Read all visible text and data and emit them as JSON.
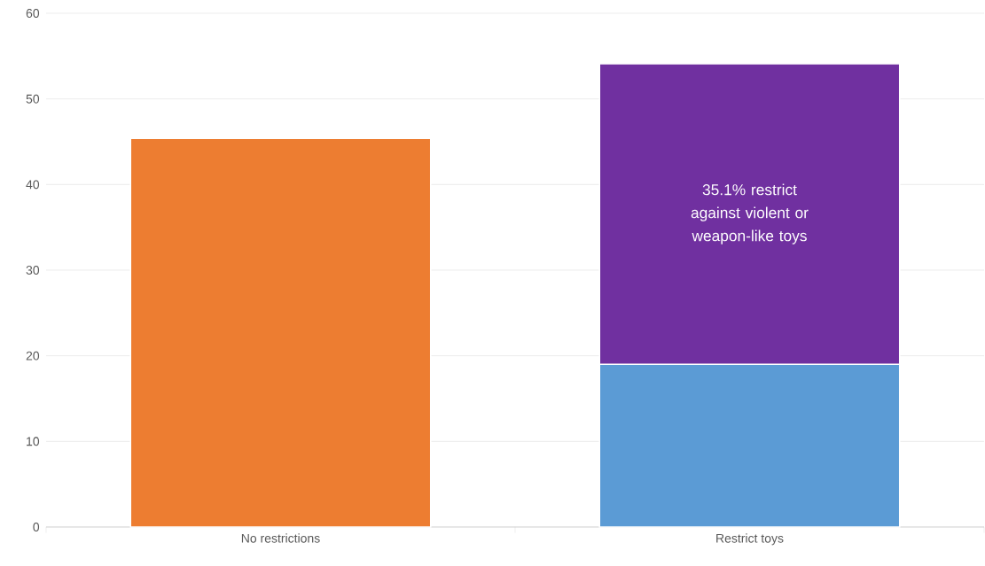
{
  "chart_data": {
    "type": "bar",
    "stacked": true,
    "categories": [
      "No restrictions",
      "Restrict toys"
    ],
    "series": [
      {
        "color": "#ed7d31",
        "values": [
          45.4,
          null
        ]
      },
      {
        "color": "#5b9bd5",
        "values": [
          null,
          19.0
        ]
      },
      {
        "color": "#7030a0",
        "values": [
          null,
          35.1
        ]
      }
    ],
    "ylim": [
      0,
      60
    ],
    "yticks": [
      0,
      10,
      20,
      30,
      40,
      50,
      60
    ],
    "grid": "y",
    "annotations": [
      "35.1% restrict against violent or weapon-like toys"
    ]
  }
}
